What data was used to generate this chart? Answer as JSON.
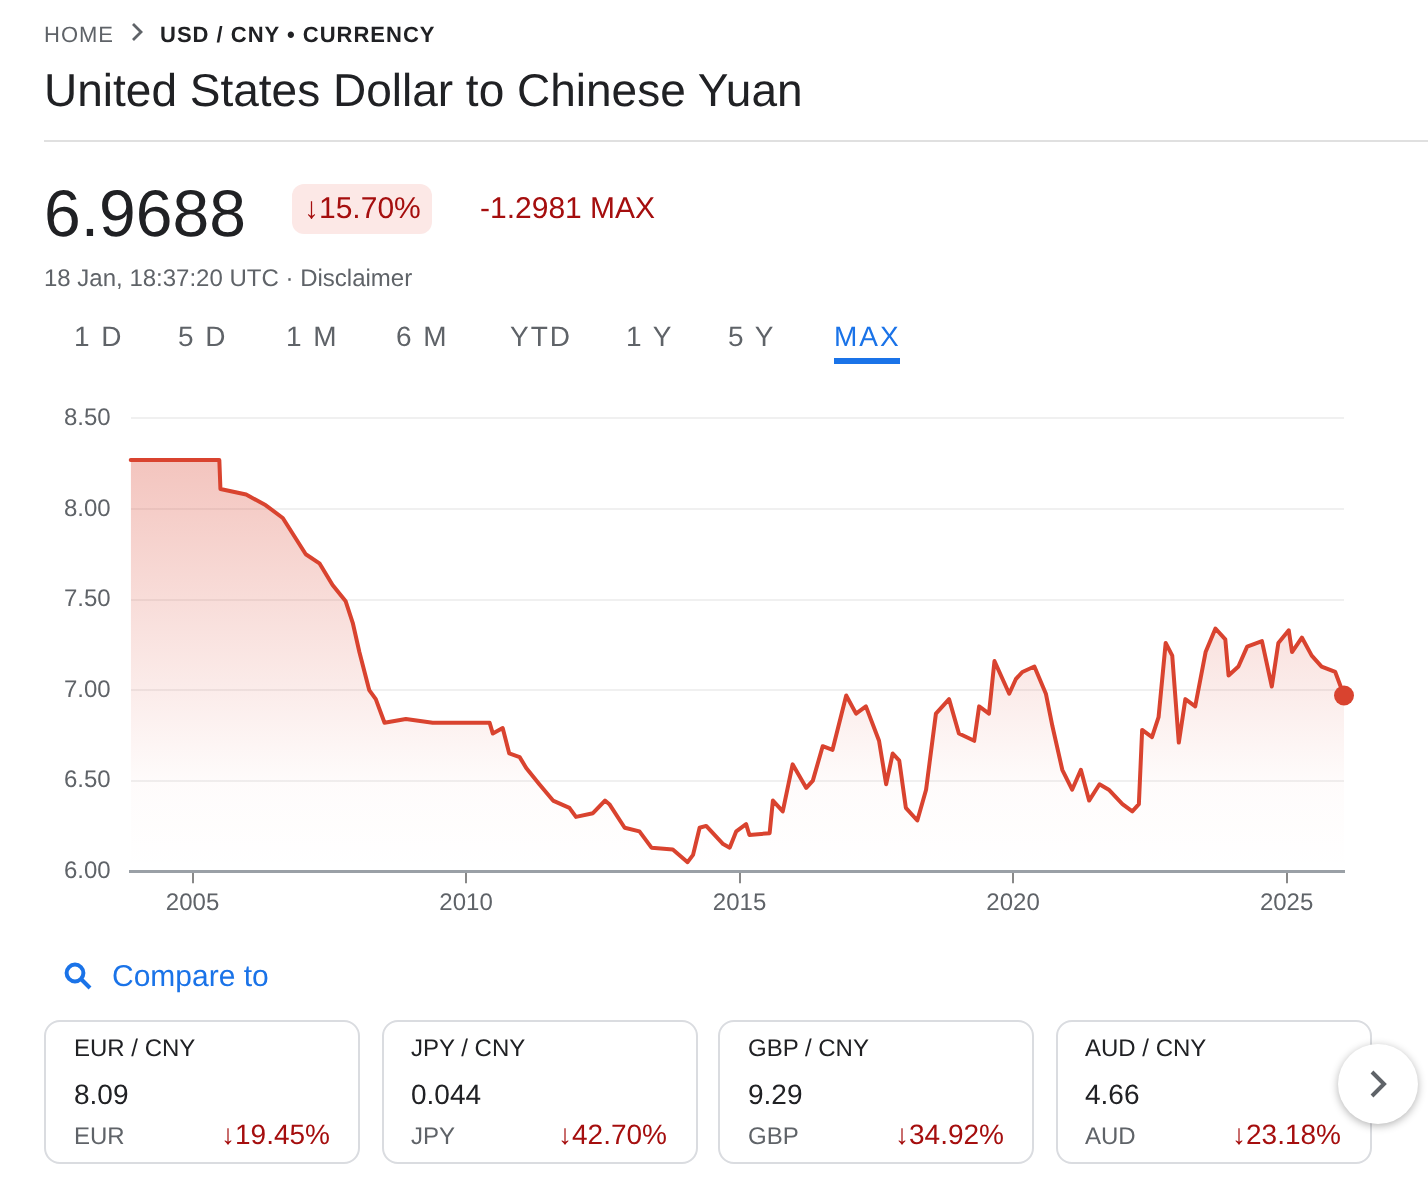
{
  "chart_data": {
    "type": "area",
    "title": "United States Dollar to Chinese Yuan",
    "annotations": [
      "HOME",
      "USD / CNY • CURRENCY",
      "6.9688",
      "↓15.70%",
      "-1.2981 MAX",
      "18 Jan, 18:37:20 UTC · Disclaimer",
      "1 D",
      "5 D",
      "1 M",
      "6 M",
      "YTD",
      "1 Y",
      "5 Y",
      "MAX",
      "Compare to",
      "EUR / CNY",
      "8.09",
      "EUR",
      "↓19.45%",
      "JPY / CNY",
      "0.044",
      "JPY",
      "↓42.70%",
      "GBP / CNY",
      "9.29",
      "GBP",
      "↓34.92%",
      "AUD / CNY",
      "4.66",
      "AUD",
      "↓23.18%"
    ],
    "series": [
      {
        "color": "#d9432f",
        "x": [
          2003.87,
          2005.49,
          2005.51,
          2005.98,
          2006.34,
          2006.65,
          2007.07,
          2007.32,
          2007.56,
          2007.8,
          2007.93,
          2008.05,
          2008.23,
          2008.35,
          2008.51,
          2008.9,
          2009.39,
          2010.43,
          2010.49,
          2010.67,
          2010.79,
          2010.98,
          2011.1,
          2011.34,
          2011.59,
          2011.89,
          2012.01,
          2012.32,
          2012.54,
          2012.62,
          2012.9,
          2013.17,
          2013.39,
          2013.78,
          2014.05,
          2014.15,
          2014.27,
          2014.39,
          2014.7,
          2014.82,
          2014.94,
          2015.12,
          2015.18,
          2015.55,
          2015.61,
          2015.79,
          2015.97,
          2016.22,
          2016.34,
          2016.52,
          2016.7,
          2016.95,
          2017.13,
          2017.31,
          2017.55,
          2017.68,
          2017.8,
          2017.92,
          2018.04,
          2018.25,
          2018.41,
          2018.59,
          2018.83,
          2019.01,
          2019.29,
          2019.38,
          2019.56,
          2019.66,
          2019.81,
          2019.93,
          2020.05,
          2020.17,
          2020.39,
          2020.6,
          2020.72,
          2020.9,
          2021.08,
          2021.24,
          2021.39,
          2021.58,
          2021.75,
          2022.0,
          2022.18,
          2022.3,
          2022.36,
          2022.54,
          2022.66,
          2022.79,
          2022.91,
          2023.03,
          2023.15,
          2023.33,
          2023.52,
          2023.7,
          2023.88,
          2023.94,
          2024.12,
          2024.28,
          2024.55,
          2024.73,
          2024.85,
          2025.04,
          2025.1,
          2025.28,
          2025.46,
          2025.64,
          2025.89,
          2026.05
        ],
        "values": [
          8.27,
          8.27,
          8.11,
          8.08,
          8.02,
          7.95,
          7.75,
          7.7,
          7.58,
          7.49,
          7.37,
          7.21,
          7.0,
          6.95,
          6.82,
          6.84,
          6.82,
          6.82,
          6.76,
          6.79,
          6.65,
          6.63,
          6.57,
          6.48,
          6.39,
          6.35,
          6.3,
          6.32,
          6.39,
          6.37,
          6.24,
          6.22,
          6.13,
          6.12,
          6.05,
          6.09,
          6.24,
          6.25,
          6.15,
          6.13,
          6.22,
          6.26,
          6.2,
          6.21,
          6.39,
          6.33,
          6.59,
          6.46,
          6.5,
          6.69,
          6.67,
          6.97,
          6.87,
          6.91,
          6.72,
          6.48,
          6.65,
          6.61,
          6.35,
          6.28,
          6.45,
          6.87,
          6.95,
          6.76,
          6.72,
          6.91,
          6.87,
          7.16,
          7.06,
          6.98,
          7.06,
          7.1,
          7.13,
          6.98,
          6.8,
          6.56,
          6.45,
          6.56,
          6.39,
          6.48,
          6.45,
          6.37,
          6.33,
          6.37,
          6.78,
          6.74,
          6.85,
          7.26,
          7.19,
          6.71,
          6.95,
          6.91,
          7.21,
          7.34,
          7.28,
          7.08,
          7.13,
          7.24,
          7.27,
          7.02,
          7.26,
          7.33,
          7.21,
          7.29,
          7.19,
          7.13,
          7.1,
          6.97
        ]
      }
    ],
    "xlim": [
      2003.87,
      2026.05
    ],
    "xticks": [
      2005,
      2010,
      2015,
      2020,
      2025
    ],
    "ylim": [
      6,
      8.5
    ],
    "yticks": [
      {
        "value": 6,
        "label": "6.00"
      },
      {
        "value": 6.5,
        "label": "6.50"
      },
      {
        "value": 7,
        "label": "7.00"
      },
      {
        "value": 7.5,
        "label": "7.50"
      },
      {
        "value": 8,
        "label": "8.00"
      },
      {
        "value": 8.5,
        "label": "8.50"
      }
    ],
    "grid": "y",
    "legend": false,
    "marker": "none",
    "line_style": "solid"
  }
}
